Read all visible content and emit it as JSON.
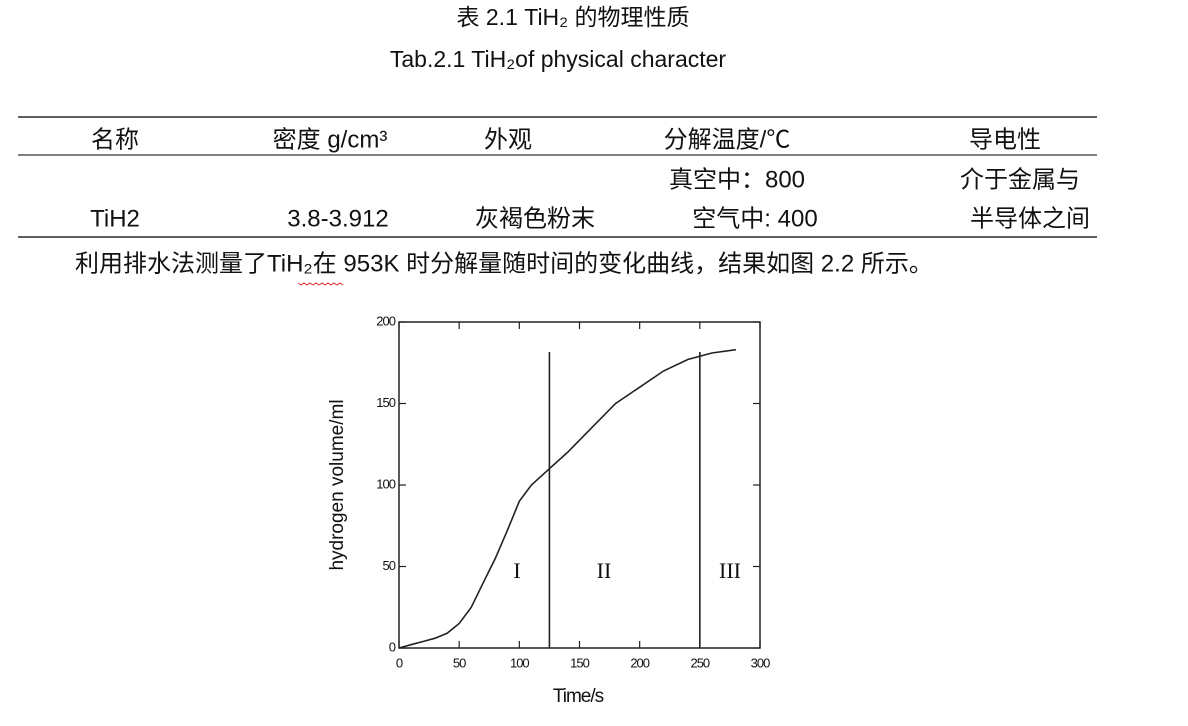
{
  "caption_cn": "表 2.1 TiH₂ 的物理性质",
  "caption_en": "Tab.2.1 TiH₂of physical character",
  "table": {
    "header": [
      "名称",
      "密度 g/cm³",
      "外观",
      "分解温度/℃",
      "导电性"
    ],
    "rows": [
      [
        "TiH2",
        "3.8-3.912",
        "灰褐色粉末",
        [
          "真空中：800",
          "空气中: 400"
        ],
        [
          "介于金属与",
          "半导体之间"
        ]
      ]
    ]
  },
  "paragraph": "利用排水法测量了TiH₂在 953K 时分解量随时间的变化曲线，结果如图 2.2 所示。",
  "figure": {
    "type": "line",
    "x_label": "Time/s",
    "y_label": "hydrogen volume/ml",
    "xlim": [
      0,
      300
    ],
    "ylim": [
      0,
      200
    ],
    "xticks": [
      0,
      50,
      100,
      150,
      200,
      250,
      300
    ],
    "yticks": [
      0,
      50,
      100,
      150,
      200
    ],
    "x": [
      0,
      10,
      20,
      30,
      40,
      50,
      60,
      70,
      80,
      90,
      100,
      110,
      125,
      140,
      160,
      180,
      200,
      220,
      240,
      260,
      280
    ],
    "series": [
      {
        "color": "#222222",
        "values": [
          0,
          2,
          4,
          6,
          9,
          15,
          25,
          40,
          55,
          72,
          90,
          100,
          110,
          120,
          135,
          150,
          160,
          170,
          177,
          181,
          183
        ]
      }
    ],
    "vlines": [
      125,
      250
    ],
    "region_labels": [
      "I",
      "II",
      "III"
    ]
  }
}
